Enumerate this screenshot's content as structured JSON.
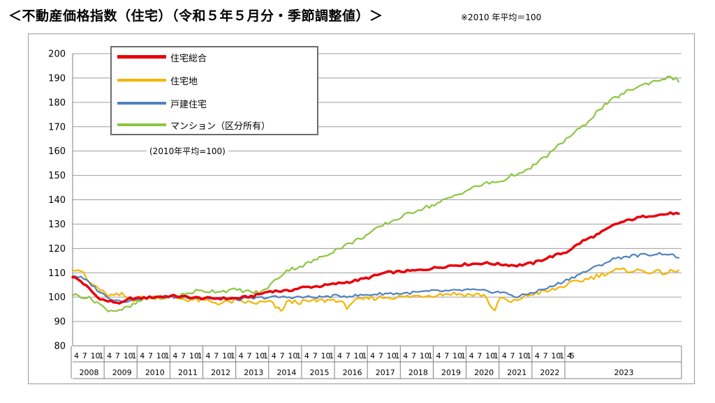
{
  "header": {
    "title": "＜不動産価格指数（住宅）（令和５年５月分・季節調整値）＞",
    "note": "※2010 年平均＝100"
  },
  "chart_data": {
    "type": "line",
    "base_note": "(2010年平均=100)",
    "ylim": [
      80,
      200
    ],
    "yticks": [
      "80",
      "90",
      "100",
      "110",
      "120",
      "130",
      "140",
      "150",
      "160",
      "170",
      "180",
      "190",
      "200"
    ],
    "grid": true,
    "legend_position": "top-left",
    "x_start": "2008-04",
    "x_end": "2023-05",
    "month_ticks": [
      "4",
      "7",
      "10",
      "1"
    ],
    "last_month_ticks": [
      "4",
      "5"
    ],
    "years": [
      "2008",
      "2009",
      "2010",
      "2011",
      "2012",
      "2013",
      "2014",
      "2015",
      "2016",
      "2017",
      "2018",
      "2019",
      "2020",
      "2021",
      "2022",
      "2023"
    ],
    "series": [
      {
        "name": "住宅総合",
        "color": "#e8000b",
        "width": 3.5,
        "anchors": [
          [
            0,
            108.5
          ],
          [
            3,
            106.5
          ],
          [
            6,
            103.5
          ],
          [
            9,
            100
          ],
          [
            12,
            98.5
          ],
          [
            15,
            98
          ],
          [
            18,
            97.5
          ],
          [
            21,
            99.5
          ],
          [
            24,
            99.5
          ],
          [
            30,
            100
          ],
          [
            36,
            100.5
          ],
          [
            42,
            100
          ],
          [
            48,
            99.5
          ],
          [
            54,
            99.5
          ],
          [
            60,
            99.5
          ],
          [
            66,
            100.5
          ],
          [
            69,
            101.5
          ],
          [
            72,
            102.5
          ],
          [
            78,
            102.5
          ],
          [
            84,
            104
          ],
          [
            90,
            104.5
          ],
          [
            96,
            105.5
          ],
          [
            102,
            106.5
          ],
          [
            108,
            108
          ],
          [
            114,
            110
          ],
          [
            120,
            110.5
          ],
          [
            126,
            111
          ],
          [
            132,
            112
          ],
          [
            138,
            113
          ],
          [
            144,
            113.5
          ],
          [
            150,
            114
          ],
          [
            156,
            113.5
          ],
          [
            162,
            113
          ],
          [
            168,
            114
          ],
          [
            174,
            116.5
          ],
          [
            180,
            118.5
          ],
          [
            186,
            123
          ],
          [
            192,
            126
          ],
          [
            198,
            130
          ],
          [
            204,
            132
          ],
          [
            210,
            133.5
          ],
          [
            216,
            134
          ],
          [
            219,
            134.5
          ],
          [
            221,
            134
          ]
        ],
        "noise": 0.5
      },
      {
        "name": "住宅地",
        "color": "#f5b400",
        "width": 2.2,
        "anchors": [
          [
            0,
            112
          ],
          [
            3,
            111
          ],
          [
            6,
            106
          ],
          [
            9,
            104
          ],
          [
            12,
            101
          ],
          [
            15,
            100.5
          ],
          [
            18,
            101
          ],
          [
            21,
            99
          ],
          [
            24,
            99.5
          ],
          [
            30,
            100
          ],
          [
            36,
            100
          ],
          [
            42,
            99
          ],
          [
            48,
            98.5
          ],
          [
            54,
            97.5
          ],
          [
            60,
            98.5
          ],
          [
            66,
            97.5
          ],
          [
            72,
            98
          ],
          [
            76,
            94
          ],
          [
            78,
            98
          ],
          [
            84,
            98
          ],
          [
            90,
            98.5
          ],
          [
            96,
            99
          ],
          [
            100,
            96
          ],
          [
            102,
            98
          ],
          [
            108,
            99.5
          ],
          [
            114,
            100
          ],
          [
            120,
            100
          ],
          [
            126,
            100.5
          ],
          [
            132,
            101
          ],
          [
            138,
            101.5
          ],
          [
            144,
            101
          ],
          [
            150,
            101
          ],
          [
            154,
            94
          ],
          [
            156,
            100
          ],
          [
            160,
            97.5
          ],
          [
            162,
            99
          ],
          [
            168,
            101.5
          ],
          [
            174,
            102.5
          ],
          [
            180,
            105
          ],
          [
            186,
            107
          ],
          [
            192,
            109
          ],
          [
            198,
            111
          ],
          [
            204,
            111
          ],
          [
            210,
            110.5
          ],
          [
            216,
            110
          ],
          [
            219,
            110.5
          ],
          [
            221,
            110.5
          ]
        ],
        "noise": 1.0
      },
      {
        "name": "戸建住宅",
        "color": "#4f81bd",
        "width": 2.2,
        "anchors": [
          [
            0,
            109
          ],
          [
            3,
            108
          ],
          [
            6,
            106
          ],
          [
            9,
            103
          ],
          [
            12,
            100.5
          ],
          [
            15,
            99
          ],
          [
            18,
            98.5
          ],
          [
            21,
            98.5
          ],
          [
            24,
            99.5
          ],
          [
            30,
            100
          ],
          [
            36,
            100
          ],
          [
            42,
            100
          ],
          [
            48,
            99.5
          ],
          [
            54,
            99.5
          ],
          [
            60,
            99
          ],
          [
            66,
            99.5
          ],
          [
            72,
            100
          ],
          [
            78,
            100
          ],
          [
            84,
            100
          ],
          [
            90,
            100
          ],
          [
            96,
            100.5
          ],
          [
            102,
            100.5
          ],
          [
            108,
            101
          ],
          [
            114,
            101.5
          ],
          [
            120,
            101.5
          ],
          [
            126,
            102
          ],
          [
            132,
            102.5
          ],
          [
            138,
            102.5
          ],
          [
            144,
            103
          ],
          [
            150,
            102.5
          ],
          [
            156,
            102
          ],
          [
            160,
            101
          ],
          [
            162,
            100
          ],
          [
            168,
            102
          ],
          [
            174,
            104
          ],
          [
            180,
            107
          ],
          [
            186,
            110
          ],
          [
            192,
            113
          ],
          [
            198,
            116
          ],
          [
            204,
            117
          ],
          [
            210,
            117.5
          ],
          [
            216,
            118
          ],
          [
            219,
            117
          ],
          [
            221,
            116.5
          ]
        ],
        "noise": 0.6
      },
      {
        "name": "マンション（区分所有）",
        "color": "#8cc641",
        "width": 2.2,
        "anchors": [
          [
            0,
            101
          ],
          [
            3,
            100.5
          ],
          [
            6,
            99.5
          ],
          [
            9,
            98
          ],
          [
            12,
            95
          ],
          [
            15,
            94.5
          ],
          [
            18,
            95
          ],
          [
            21,
            96
          ],
          [
            24,
            98
          ],
          [
            27,
            99.5
          ],
          [
            30,
            100
          ],
          [
            36,
            100
          ],
          [
            42,
            101.5
          ],
          [
            45,
            102.5
          ],
          [
            48,
            102.5
          ],
          [
            54,
            102.5
          ],
          [
            60,
            103
          ],
          [
            66,
            102
          ],
          [
            69,
            102
          ],
          [
            72,
            105
          ],
          [
            75,
            108
          ],
          [
            78,
            111
          ],
          [
            84,
            113
          ],
          [
            90,
            116
          ],
          [
            96,
            119.5
          ],
          [
            102,
            122.5
          ],
          [
            108,
            126
          ],
          [
            114,
            130
          ],
          [
            120,
            133
          ],
          [
            126,
            136
          ],
          [
            132,
            138
          ],
          [
            138,
            141
          ],
          [
            144,
            144
          ],
          [
            150,
            146.5
          ],
          [
            156,
            147.5
          ],
          [
            162,
            151
          ],
          [
            164,
            150.5
          ],
          [
            168,
            154
          ],
          [
            174,
            159
          ],
          [
            180,
            165
          ],
          [
            186,
            170
          ],
          [
            192,
            177
          ],
          [
            198,
            182
          ],
          [
            204,
            185.5
          ],
          [
            210,
            188
          ],
          [
            216,
            190
          ],
          [
            219,
            190
          ],
          [
            221,
            189
          ]
        ],
        "noise": 0.8
      }
    ]
  }
}
